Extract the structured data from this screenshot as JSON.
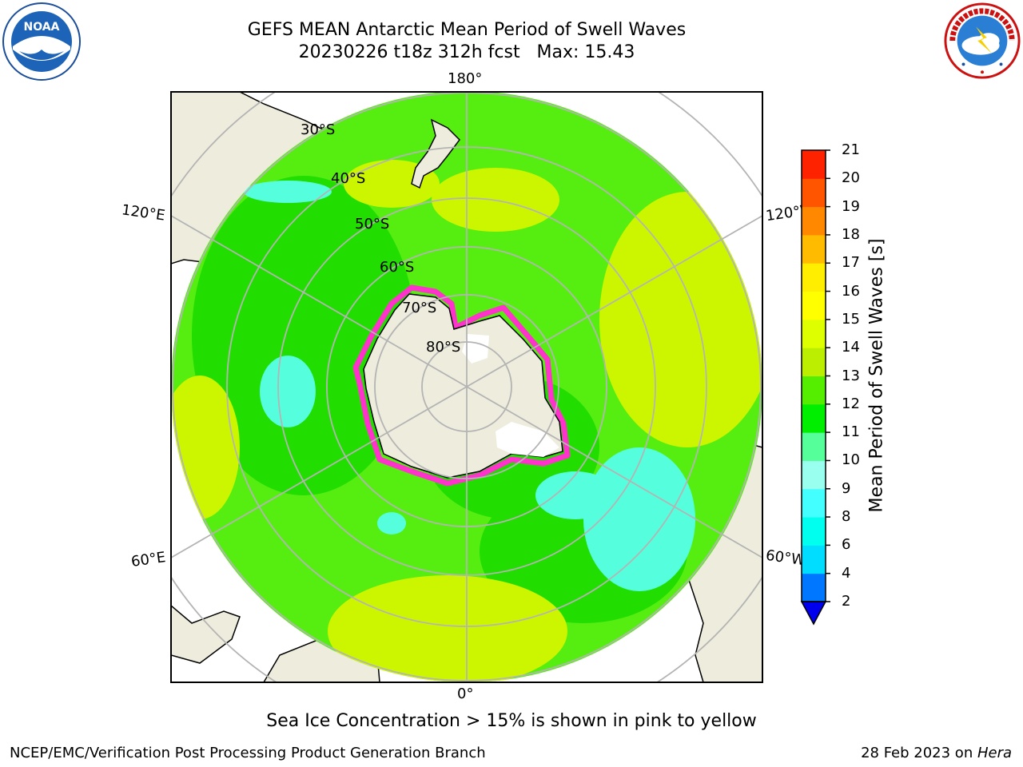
{
  "header": {
    "title_line1": "GEFS MEAN Antarctic Mean Period of Swell Waves",
    "title_line2": "20230226 t18z 312h fcst   Max: 15.43"
  },
  "logos": {
    "left": {
      "icon": "noaa-logo-icon",
      "text": "NOAA"
    },
    "right": {
      "icon": "nws-logo-icon",
      "text": "NATIONAL WEATHER SERVICE"
    }
  },
  "map": {
    "projection": "south-polar-stereographic",
    "longitude_labels": {
      "top": "180°",
      "left_upper": "120°E",
      "right_upper": "120°W",
      "left_lower": "60°E",
      "right_lower": "60°W",
      "bottom": "0°"
    },
    "latitude_labels": [
      "30°S",
      "40°S",
      "50°S",
      "60°S",
      "70°S",
      "80°S"
    ],
    "colors": {
      "land": "#eeecdc",
      "ocean_main": "#55ee10",
      "ocean_bright": "#22dd00",
      "ocean_yellow": "#ccf500",
      "ocean_cyan": "#55ffdd",
      "ice_edge": "#ff33cc",
      "grid": "#b4b4b4"
    }
  },
  "colorbar": {
    "label": "Mean Period of Swell Waves [s]",
    "ticks": [
      "21",
      "20",
      "19",
      "18",
      "17",
      "16",
      "15",
      "14",
      "13",
      "12",
      "11",
      "10",
      "9",
      "8",
      "6",
      "4",
      "2"
    ],
    "colors": [
      "#0000ee",
      "#0077ff",
      "#00ddff",
      "#00ffee",
      "#44ffff",
      "#99ffee",
      "#55ff99",
      "#00ee00",
      "#55ee00",
      "#bbee00",
      "#ddff00",
      "#ffff00",
      "#ffee00",
      "#ffbb00",
      "#ff8800",
      "#ff5500",
      "#ff2200",
      "#ff0000"
    ]
  },
  "caption": "Sea Ice Concentration > 15% is shown in pink to yellow",
  "footer": {
    "left": "NCEP/EMC/Verification Post Processing Product Generation Branch",
    "right_prefix": "28 Feb 2023 on ",
    "right_host": "Hera"
  }
}
